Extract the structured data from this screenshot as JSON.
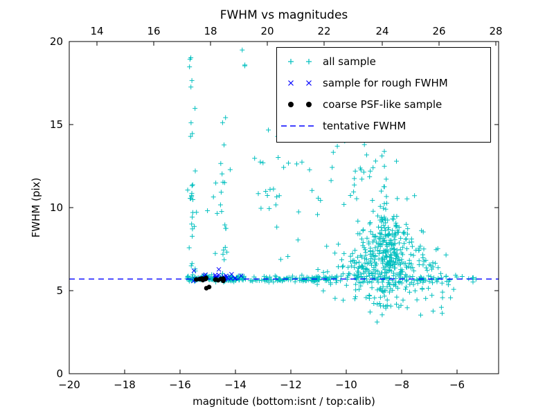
{
  "chart_data": {
    "type": "scatter",
    "title": "FWHM vs magnitudes",
    "xlabel": "magnitude (bottom:isnt / top:calib)",
    "ylabel": "FWHM (pix)",
    "xlim": [
      -20,
      -4.5
    ],
    "ylim": [
      0,
      20
    ],
    "grid": false,
    "background_color": "#ffffff",
    "axis_color": "#000000",
    "bottom_ticks": {
      "values": [
        -20,
        -18,
        -16,
        -14,
        -12,
        -10,
        -8,
        -6
      ],
      "labels": [
        "−20",
        "−18",
        "−16",
        "−14",
        "−12",
        "−10",
        "−8",
        "−6"
      ]
    },
    "top_ticks": {
      "labels": [
        "14",
        "16",
        "18",
        "20",
        "22",
        "24",
        "26",
        "28"
      ],
      "positions_isnt": [
        -19.0,
        -16.95,
        -14.9,
        -12.85,
        -10.8,
        -8.7,
        -6.65,
        -4.6
      ]
    },
    "y_ticks": {
      "values": [
        0,
        5,
        10,
        15,
        20
      ],
      "labels": [
        "0",
        "5",
        "10",
        "15",
        "20"
      ]
    },
    "tentative_fwhm": 5.7,
    "legend": {
      "position": "upper right",
      "entries": [
        {
          "label": "all sample",
          "marker": "plus",
          "color": "#00bfbf"
        },
        {
          "label": "sample for rough FWHM",
          "marker": "x",
          "color": "#0000ff"
        },
        {
          "label": "coarse PSF-like sample",
          "marker": "dot",
          "color": "#000000"
        },
        {
          "label": "tentative FWHM",
          "marker": "dashed-line",
          "color": "#0000ff"
        }
      ]
    },
    "seed": 20240614,
    "series": [
      {
        "name": "all sample",
        "marker": "plus",
        "color": "#00bfbf",
        "points": [],
        "clusters": [
          {
            "n": 140,
            "x": [
              "u",
              -15.75,
              -13.6
            ],
            "y": [
              "g",
              5.72,
              0.1
            ]
          },
          {
            "n": 100,
            "x": [
              "u",
              -13.6,
              -10.6
            ],
            "y": [
              "g",
              5.68,
              0.09
            ]
          },
          {
            "n": 60,
            "x": [
              "u",
              -10.6,
              -5.3
            ],
            "y": [
              "g",
              5.7,
              0.13
            ]
          },
          {
            "n": 22,
            "x": [
              "g",
              -15.55,
              0.07
            ],
            "y": [
              "u",
              6.0,
              13.0
            ]
          },
          {
            "n": 9,
            "x": [
              "g",
              -15.6,
              0.09
            ],
            "y": [
              "u",
              13.0,
              19.4
            ]
          },
          {
            "n": 5,
            "x": [
              "u",
              -15.1,
              -14.6
            ],
            "y": [
              "u",
              7.0,
              13.0
            ]
          },
          {
            "n": 16,
            "x": [
              "g",
              -14.4,
              0.09
            ],
            "y": [
              "u",
              6.0,
              12.5
            ]
          },
          {
            "n": 4,
            "x": [
              "g",
              -14.45,
              0.07
            ],
            "y": [
              "u",
              12.5,
              15.6
            ]
          },
          {
            "n": 3,
            "x": [
              "g",
              -13.8,
              0.08
            ],
            "y": [
              "u",
              18.2,
              19.6
            ]
          },
          {
            "n": 28,
            "x": [
              "u",
              -13.4,
              -10.7
            ],
            "y": [
              "u",
              6.3,
              13.0
            ]
          },
          {
            "n": 4,
            "x": [
              "u",
              -13.0,
              -11.0
            ],
            "y": [
              "u",
              13.0,
              15.8
            ]
          },
          {
            "n": 300,
            "x": [
              "g",
              -8.55,
              0.5
            ],
            "y": [
              "g",
              7.2,
              1.7
            ]
          },
          {
            "n": 55,
            "x": [
              "g",
              -9.3,
              0.55
            ],
            "y": [
              "u",
              10.0,
              17.2
            ]
          },
          {
            "n": 130,
            "x": [
              "g",
              -8.9,
              1.0
            ],
            "y": [
              "g",
              6.2,
              0.7
            ]
          },
          {
            "n": 14,
            "x": [
              "u",
              -10.3,
              -6.4
            ],
            "y": [
              "u",
              3.8,
              5.2
            ]
          },
          {
            "n": 40,
            "x": [
              "g",
              -7.2,
              0.5
            ],
            "y": [
              "g",
              5.8,
              0.9
            ]
          },
          {
            "n": 2,
            "x": [
              "u",
              -6.6,
              -5.9
            ],
            "y": [
              "u",
              3.5,
              4.6
            ]
          }
        ]
      },
      {
        "name": "sample for rough FWHM",
        "marker": "x",
        "color": "#0000ff",
        "points": [
          [
            -15.5,
            6.2
          ],
          [
            -14.6,
            6.28
          ]
        ],
        "clusters": [
          {
            "n": 24,
            "x": [
              "u",
              -15.55,
              -13.75
            ],
            "y": [
              "g",
              5.8,
              0.1
            ]
          }
        ]
      },
      {
        "name": "coarse PSF-like sample",
        "marker": "dot",
        "color": "#000000",
        "points": [
          [
            -15.05,
            5.15
          ],
          [
            -14.95,
            5.22
          ]
        ],
        "clusters": [
          {
            "n": 16,
            "x": [
              "u",
              -15.5,
              -14.4
            ],
            "y": [
              "g",
              5.68,
              0.05
            ]
          }
        ]
      }
    ]
  }
}
